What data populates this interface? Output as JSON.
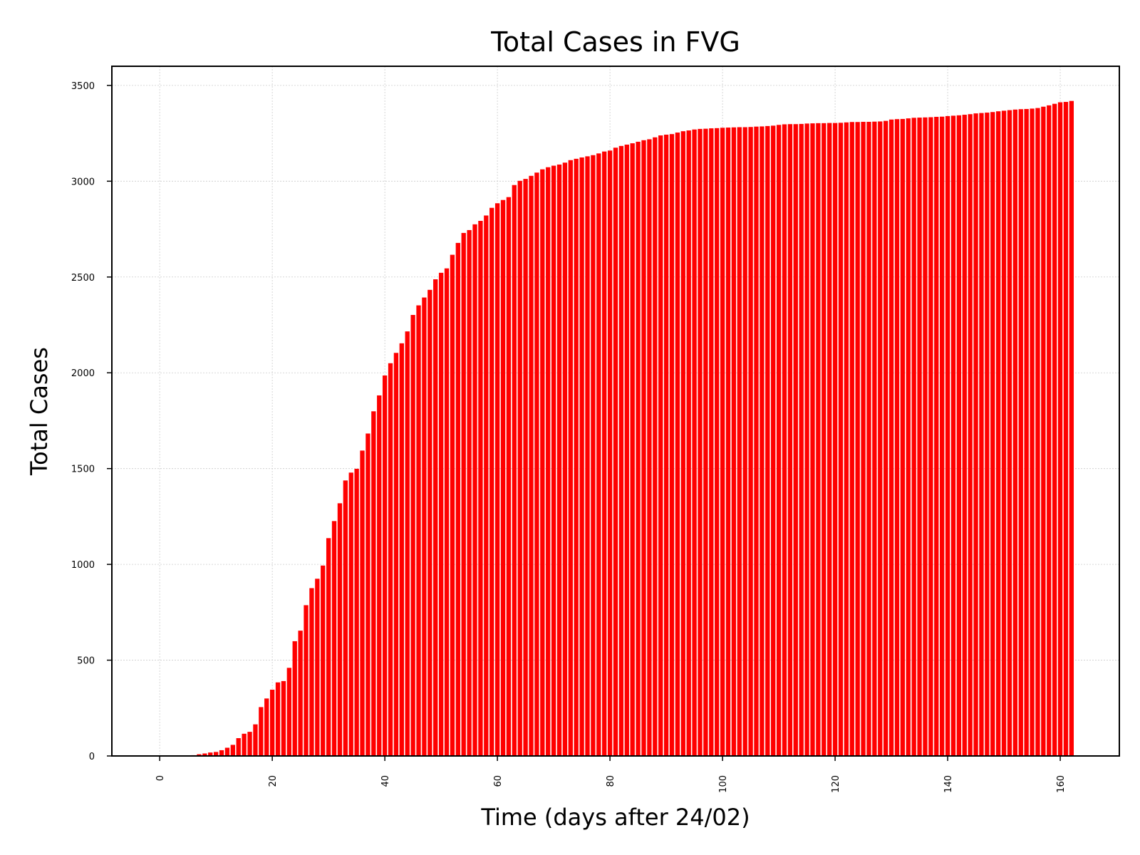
{
  "chart_data": {
    "type": "bar",
    "title": "Total Cases in FVG",
    "xlabel": "Time (days after 24/02)",
    "ylabel": "Total Cases",
    "xlim": [
      -8.5,
      170.5
    ],
    "ylim": [
      0,
      3600
    ],
    "xticks": [
      0,
      20,
      40,
      60,
      80,
      100,
      120,
      140,
      160
    ],
    "xtick_labels": [
      "0",
      "20",
      "40",
      "60",
      "80",
      "100",
      "120",
      "140",
      "160"
    ],
    "yticks": [
      0,
      500,
      1000,
      1500,
      2000,
      2500,
      3000,
      3500
    ],
    "ytick_labels": [
      "0",
      "500",
      "1000",
      "1500",
      "2000",
      "2500",
      "3000",
      "3500"
    ],
    "grid": true,
    "bar_color": "#ff0000",
    "x": [
      0,
      1,
      2,
      3,
      4,
      5,
      6,
      7,
      8,
      9,
      10,
      11,
      12,
      13,
      14,
      15,
      16,
      17,
      18,
      19,
      20,
      21,
      22,
      23,
      24,
      25,
      26,
      27,
      28,
      29,
      30,
      31,
      32,
      33,
      34,
      35,
      36,
      37,
      38,
      39,
      40,
      41,
      42,
      43,
      44,
      45,
      46,
      47,
      48,
      49,
      50,
      51,
      52,
      53,
      54,
      55,
      56,
      57,
      58,
      59,
      60,
      61,
      62,
      63,
      64,
      65,
      66,
      67,
      68,
      69,
      70,
      71,
      72,
      73,
      74,
      75,
      76,
      77,
      78,
      79,
      80,
      81,
      82,
      83,
      84,
      85,
      86,
      87,
      88,
      89,
      90,
      91,
      92,
      93,
      94,
      95,
      96,
      97,
      98,
      99,
      100,
      101,
      102,
      103,
      104,
      105,
      106,
      107,
      108,
      109,
      110,
      111,
      112,
      113,
      114,
      115,
      116,
      117,
      118,
      119,
      120,
      121,
      122,
      123,
      124,
      125,
      126,
      127,
      128,
      129,
      130,
      131,
      132,
      133,
      134,
      135,
      136,
      137,
      138,
      139,
      140,
      141,
      142,
      143,
      144,
      145,
      146,
      147,
      148,
      149,
      150,
      151,
      152,
      153,
      154,
      155,
      156,
      157,
      158,
      159,
      160,
      161,
      162
    ],
    "values": [
      0,
      0,
      0,
      0,
      0,
      0,
      4,
      9,
      13,
      18,
      21,
      30,
      43,
      58,
      93,
      116,
      126,
      165,
      255,
      300,
      346,
      384,
      391,
      460,
      599,
      654,
      787,
      876,
      925,
      994,
      1137,
      1226,
      1319,
      1438,
      1479,
      1499,
      1594,
      1683,
      1799,
      1882,
      1986,
      2050,
      2104,
      2154,
      2216,
      2302,
      2352,
      2393,
      2433,
      2488,
      2522,
      2545,
      2616,
      2678,
      2730,
      2745,
      2775,
      2793,
      2821,
      2861,
      2885,
      2902,
      2917,
      2980,
      3002,
      3012,
      3028,
      3045,
      3062,
      3073,
      3081,
      3087,
      3097,
      3110,
      3117,
      3124,
      3130,
      3136,
      3145,
      3155,
      3160,
      3175,
      3184,
      3191,
      3198,
      3206,
      3214,
      3219,
      3229,
      3239,
      3243,
      3246,
      3254,
      3261,
      3265,
      3270,
      3273,
      3274,
      3276,
      3277,
      3279,
      3280,
      3281,
      3282,
      3282,
      3283,
      3285,
      3286,
      3288,
      3290,
      3294,
      3297,
      3298,
      3298,
      3299,
      3301,
      3302,
      3303,
      3303,
      3304,
      3304,
      3305,
      3307,
      3309,
      3309,
      3310,
      3310,
      3311,
      3312,
      3315,
      3322,
      3324,
      3325,
      3328,
      3331,
      3332,
      3333,
      3334,
      3336,
      3337,
      3340,
      3342,
      3344,
      3347,
      3350,
      3354,
      3356,
      3358,
      3361,
      3365,
      3368,
      3371,
      3374,
      3376,
      3377,
      3379,
      3382,
      3389,
      3396,
      3404,
      3412,
      3414,
      3419
    ]
  }
}
